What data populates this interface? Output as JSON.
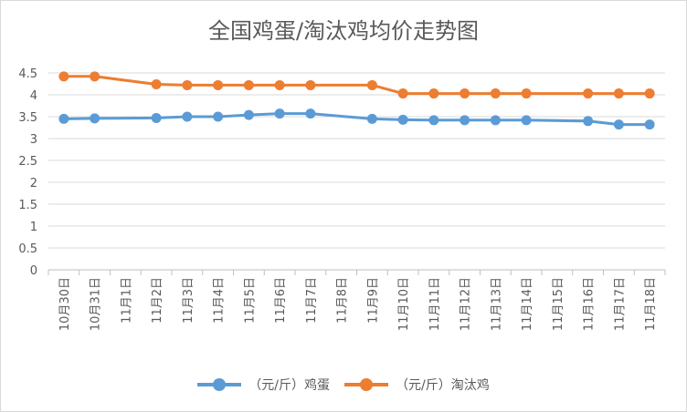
{
  "chart_data": {
    "type": "line",
    "title": "全国鸡蛋/淘汰鸡均价走势图",
    "xlabel": "",
    "ylabel": "",
    "ylim": [
      0,
      4.5
    ],
    "yticks": [
      "0",
      "0.5",
      "1",
      "1.5",
      "2",
      "2.5",
      "3",
      "3.5",
      "4",
      "4.5"
    ],
    "categories": [
      "10月30日",
      "10月31日",
      "11月1日",
      "11月2日",
      "11月3日",
      "11月4日",
      "11月5日",
      "11月6日",
      "11月7日",
      "11月8日",
      "11月9日",
      "11月10日",
      "11月11日",
      "11月12日",
      "11月13日",
      "11月14日",
      "11月15日",
      "11月16日",
      "11月17日",
      "11月18日"
    ],
    "grid": true,
    "legend_position": "bottom",
    "series": [
      {
        "name": "（元/斤）鸡蛋",
        "color": "#5B9BD5",
        "values": [
          3.45,
          3.46,
          null,
          3.47,
          3.5,
          3.5,
          3.54,
          3.57,
          3.57,
          null,
          3.45,
          3.43,
          3.42,
          3.42,
          3.42,
          3.42,
          null,
          3.4,
          3.32,
          3.32
        ]
      },
      {
        "name": "（元/斤）淘汰鸡",
        "color": "#ED7D31",
        "values": [
          4.42,
          4.42,
          null,
          4.24,
          4.22,
          4.22,
          4.22,
          4.22,
          4.22,
          null,
          4.22,
          4.03,
          4.03,
          4.03,
          4.03,
          4.03,
          null,
          4.03,
          4.03,
          4.03
        ]
      }
    ]
  }
}
